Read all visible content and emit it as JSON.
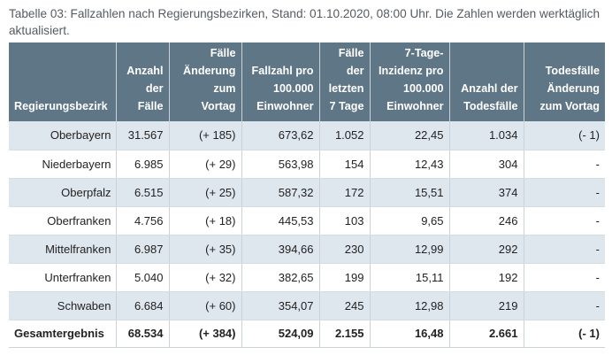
{
  "caption": "Tabelle 03: Fallzahlen nach Regierungsbezirken, Stand: 01.10.2020, 08:00 Uhr. Die Zahlen werden werktäglich aktualisiert.",
  "columns": [
    [
      "Regierungsbezirk"
    ],
    [
      "Anzahl",
      "der",
      "Fälle"
    ],
    [
      "Fälle",
      "Änderung",
      "zum",
      "Vortag"
    ],
    [
      "Fallzahl pro",
      "100.000",
      "Einwohner"
    ],
    [
      "Fälle",
      "der",
      "letzten",
      "7 Tage"
    ],
    [
      "7-Tage-",
      "Inzidenz pro",
      "100.000",
      "Einwohner"
    ],
    [
      "Anzahl der",
      "Todesfälle"
    ],
    [
      "Todesfälle",
      "Änderung",
      "zum Vortag"
    ]
  ],
  "rows": [
    [
      "Oberbayern",
      "31.567",
      "(+ 185)",
      "673,62",
      "1.052",
      "22,45",
      "1.034",
      "(- 1)"
    ],
    [
      "Niederbayern",
      "6.985",
      "(+ 29)",
      "563,98",
      "154",
      "12,43",
      "304",
      "-"
    ],
    [
      "Oberpfalz",
      "6.515",
      "(+ 25)",
      "587,32",
      "172",
      "15,51",
      "374",
      "-"
    ],
    [
      "Oberfranken",
      "4.756",
      "(+ 18)",
      "445,53",
      "103",
      "9,65",
      "246",
      "-"
    ],
    [
      "Mittelfranken",
      "6.987",
      "(+ 35)",
      "394,66",
      "230",
      "12,99",
      "292",
      "-"
    ],
    [
      "Unterfranken",
      "5.040",
      "(+ 32)",
      "382,65",
      "199",
      "15,11",
      "192",
      "-"
    ],
    [
      "Schwaben",
      "6.684",
      "(+ 60)",
      "354,07",
      "245",
      "12,98",
      "219",
      "-"
    ]
  ],
  "total": [
    "Gesamtergebnis",
    "68.534",
    "(+ 384)",
    "524,09",
    "2.155",
    "16,48",
    "2.661",
    "(- 1)"
  ],
  "colors": {
    "header_bg": "#5f7686",
    "stripe_bg": "#dfe7ee",
    "caption_text": "#555b61"
  }
}
